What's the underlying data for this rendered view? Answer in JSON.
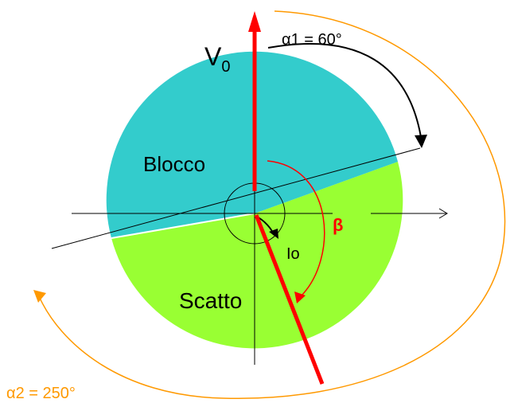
{
  "labels": {
    "v0": "V",
    "v0_subscript": "0",
    "alpha1": "α1 = 60°",
    "alpha2": "α2 = 250°",
    "blocco": "Blocco",
    "scatto": "Scatto",
    "beta": "β",
    "io": "Io"
  },
  "angles": {
    "alpha1_deg": 60,
    "alpha2_deg": 250
  },
  "colors": {
    "blocco_region": "#33cccc",
    "scatto_region": "#99ff33",
    "vector": "#ff0000",
    "alpha2_arc": "#ff9900",
    "beta_arc": "#ff0000",
    "axes": "#000000",
    "alpha2_text": "#ff9900",
    "beta_text": "#ff0000"
  }
}
